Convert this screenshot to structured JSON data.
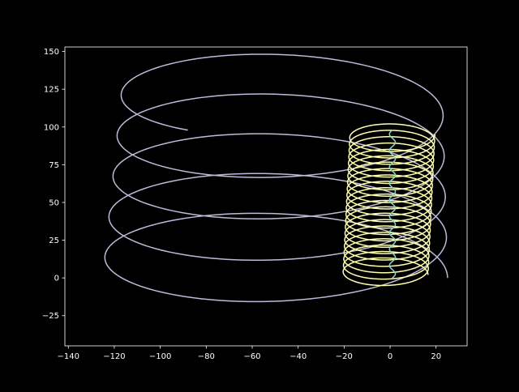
{
  "chart_data": {
    "type": "line",
    "title": "",
    "xlabel": "",
    "ylabel": "",
    "xlim": [
      -141.5,
      33.5
    ],
    "ylim": [
      -45,
      153
    ],
    "x_ticks": [
      -140,
      -120,
      -100,
      -80,
      -60,
      -40,
      -20,
      0,
      20
    ],
    "x_tick_labels": [
      "−140",
      "−120",
      "−100",
      "−80",
      "−60",
      "−40",
      "−20",
      "0",
      "20"
    ],
    "y_ticks": [
      -25,
      0,
      25,
      50,
      75,
      100,
      125,
      150
    ],
    "y_tick_labels": [
      "−25",
      "0",
      "25",
      "50",
      "75",
      "100",
      "125",
      "150"
    ],
    "grid": false,
    "legend": "none",
    "background_color": "#000000",
    "axis_color": "#ffffff",
    "series": [
      {
        "kind": "tilted-spiral",
        "color": "#bebada",
        "params": {
          "turns": 4.65,
          "r_start": 75,
          "r_decay": 0.93,
          "cx_start": -50,
          "cx_end": -47,
          "cy_start": 0,
          "cy_end": 125,
          "aspect": 0.48,
          "samples": 700,
          "phase_deg": 0
        }
      },
      {
        "kind": "tilted-spiral",
        "color": "#ffffb3",
        "params": {
          "turns": 22,
          "r_start": 18.5,
          "r_decay": 1.0,
          "cx_start": -2,
          "cx_end": 1,
          "cy_start": 2,
          "cy_end": 95,
          "aspect": 0.55,
          "samples": 4400,
          "phase_deg": 0
        }
      },
      {
        "kind": "wobble-line",
        "color": "#8dd3c7",
        "params": {
          "x_center": 1,
          "amplitude": 1.3,
          "wobbles": 9,
          "y_start": 0,
          "y_end": 98,
          "samples": 200
        }
      }
    ]
  }
}
